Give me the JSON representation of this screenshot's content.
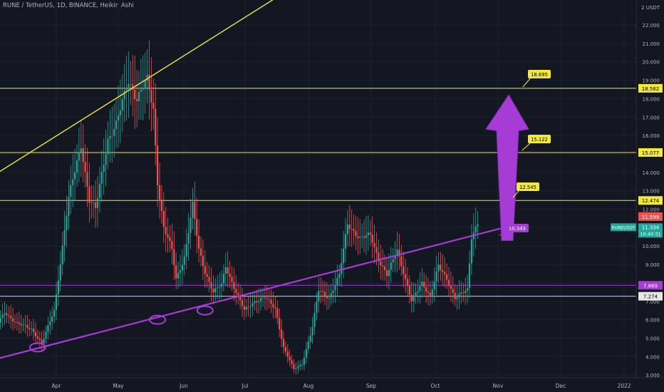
{
  "header": {
    "title": "RUNE / TetherUS, 1D, BINANCE, Heikin Ashi"
  },
  "colors": {
    "background": "#131722",
    "up": "#26a69a",
    "down": "#ef5350",
    "yellow": "#f5e83c",
    "purple": "#a63bd6",
    "axis_text": "#b2b5be"
  },
  "chart_data": {
    "type": "candlestick",
    "title": "RUNE / TetherUS, 1D, BINANCE, Heikin Ashi",
    "y_unit": "USDT",
    "y_ticks": [
      "2 USDT",
      "22.000",
      "21.000",
      "20.000",
      "19.000",
      "18.000",
      "17.000",
      "16.000",
      "15.000",
      "14.000",
      "13.000",
      "12.000",
      "11.000",
      "10.000",
      "9.000",
      "8.000",
      "7.000",
      "6.000",
      "5.000",
      "4.000",
      "3.000"
    ],
    "x_ticks": [
      "Apr",
      "May",
      "Jun",
      "Jul",
      "Aug",
      "Sep",
      "Oct",
      "Nov",
      "Dec",
      "2022"
    ],
    "price_levels": [
      {
        "value": 18.562,
        "label": "18.562",
        "color": "yellow"
      },
      {
        "value": 15.077,
        "label": "15.077",
        "color": "yellow"
      },
      {
        "value": 12.474,
        "label": "12.474",
        "color": "yellow"
      },
      {
        "value": 11.599,
        "label": "11.599",
        "color": "red"
      },
      {
        "value": 7.869,
        "label": "7.869",
        "color": "purple"
      },
      {
        "value": 7.274,
        "label": "7.274",
        "color": "white"
      }
    ],
    "current_price": {
      "symbol": "RUNEUSDT",
      "value": "11.334",
      "countdown": "10:40:31"
    },
    "callouts": [
      "18.695",
      "15.122",
      "12.545",
      "10.343"
    ],
    "arrow": {
      "direction": "up",
      "from": 10.3,
      "to": 18.2
    },
    "trendlines": [
      {
        "color": "yellow",
        "from": [
          "Mar 4",
          14.0
        ],
        "to": [
          "May 21",
          19.5
        ]
      },
      {
        "color": "purple",
        "from": [
          "Mar 4",
          3.9
        ],
        "to": [
          "Nov 7",
          11.1
        ]
      }
    ],
    "markers": [
      {
        "x": "Mar 23",
        "y": 4.5
      },
      {
        "x": "May 20",
        "y": 6.0
      },
      {
        "x": "Jun 12",
        "y": 6.5
      }
    ],
    "candles": []
  }
}
